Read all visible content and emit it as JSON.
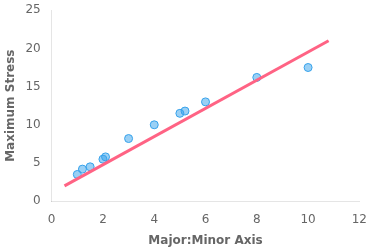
{
  "chart_data": {
    "type": "scatter",
    "xlabel": "Major:Minor Axis",
    "ylabel": "Maximum Stress",
    "series": [
      {
        "type": "scatter",
        "x": [
          1.0,
          1.2,
          1.5,
          2.0,
          2.1,
          3.0,
          4.0,
          5.0,
          5.2,
          6.0,
          8.0,
          10.0
        ],
        "values": [
          3.5,
          4.2,
          4.5,
          5.5,
          5.8,
          8.2,
          10.0,
          11.5,
          11.8,
          13.0,
          16.2,
          17.5
        ]
      },
      {
        "type": "line",
        "x": [
          0.5,
          10.8
        ],
        "values": [
          2.0,
          21.0
        ]
      }
    ],
    "xlim": [
      0,
      12
    ],
    "ylim": [
      0,
      25
    ],
    "xticks": [
      0,
      2,
      4,
      6,
      8,
      10,
      12
    ],
    "yticks": [
      0,
      5,
      10,
      15,
      20,
      25
    ],
    "grid": false
  }
}
